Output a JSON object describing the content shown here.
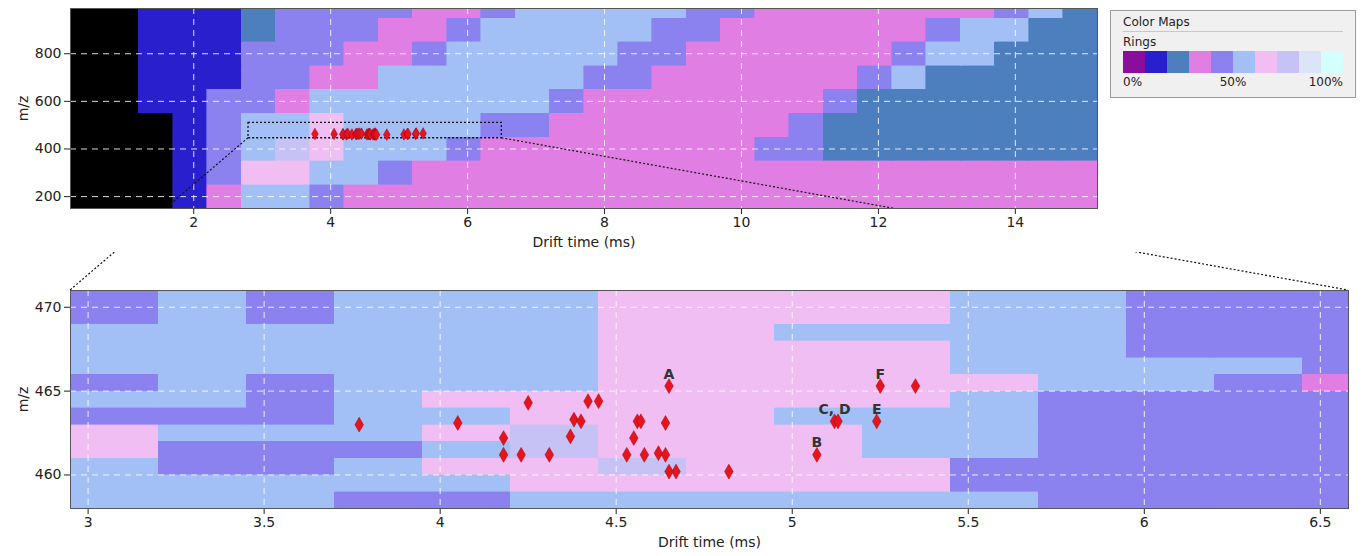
{
  "chart_data": [
    {
      "type": "heatmap",
      "x_label": "Drift time (ms)",
      "y_label": "m/z",
      "xlim": [
        0.2,
        15.2
      ],
      "ylim": [
        150,
        990
      ],
      "xticks": [
        2,
        4,
        6,
        8,
        10,
        12,
        14
      ],
      "yticks": [
        200,
        400,
        600,
        800
      ],
      "grid": true,
      "legend": "right",
      "colorbar": {
        "title": "Color Maps",
        "label": "Rings",
        "range": [
          0,
          100
        ],
        "ticks": [
          {
            "value": 0,
            "label": "0%"
          },
          {
            "value": 50,
            "label": "50%"
          },
          {
            "value": 100,
            "label": "100%"
          }
        ],
        "colors": [
          "#8b0d9e",
          "#2a1fcc",
          "#4d7fbf",
          "#e07ee4",
          "#8b82f0",
          "#a2c0f5",
          "#f0bef2",
          "#c6c2f5",
          "#dce4fa",
          "#d4ffff"
        ]
      },
      "zoom_box": {
        "x": [
          2.8,
          6.5
        ],
        "y": [
          445,
          510
        ]
      },
      "heatmap": {
        "x_edges": [
          0.2,
          0.7,
          1.2,
          1.7,
          2.2,
          2.7,
          3.2,
          3.7,
          4.2,
          4.7,
          5.2,
          5.7,
          6.2,
          6.7,
          7.2,
          7.7,
          8.2,
          8.7,
          9.2,
          9.7,
          10.2,
          10.7,
          11.2,
          11.7,
          12.2,
          12.7,
          13.2,
          13.7,
          14.2,
          14.7,
          15.2
        ],
        "y_edges": [
          150,
          250,
          350,
          450,
          550,
          650,
          750,
          850,
          950,
          990
        ],
        "values": [
          [
            null,
            null,
            null,
            15,
            35,
            55,
            55,
            45,
            35,
            35,
            35,
            35,
            35,
            35,
            35,
            35,
            35,
            35,
            35,
            35,
            35,
            35,
            35,
            35,
            35,
            35,
            35,
            35,
            35,
            35
          ],
          [
            null,
            null,
            null,
            15,
            45,
            65,
            65,
            55,
            55,
            45,
            35,
            35,
            35,
            35,
            35,
            35,
            35,
            35,
            35,
            35,
            35,
            35,
            35,
            35,
            35,
            35,
            35,
            35,
            35,
            35
          ],
          [
            null,
            null,
            null,
            15,
            45,
            55,
            75,
            65,
            55,
            55,
            55,
            45,
            35,
            35,
            35,
            35,
            35,
            35,
            35,
            35,
            45,
            45,
            25,
            25,
            25,
            25,
            25,
            25,
            25,
            25
          ],
          [
            null,
            null,
            null,
            15,
            45,
            55,
            55,
            65,
            55,
            55,
            55,
            55,
            45,
            45,
            35,
            35,
            35,
            35,
            35,
            35,
            35,
            45,
            25,
            25,
            25,
            25,
            25,
            25,
            25,
            25
          ],
          [
            null,
            null,
            15,
            15,
            45,
            45,
            35,
            55,
            55,
            55,
            55,
            55,
            55,
            55,
            45,
            35,
            35,
            35,
            35,
            35,
            35,
            35,
            45,
            25,
            25,
            25,
            25,
            25,
            25,
            25
          ],
          [
            null,
            null,
            15,
            15,
            15,
            45,
            45,
            35,
            35,
            55,
            55,
            55,
            55,
            55,
            55,
            45,
            45,
            35,
            35,
            35,
            35,
            35,
            35,
            45,
            55,
            25,
            25,
            25,
            25,
            25
          ],
          [
            null,
            null,
            15,
            15,
            15,
            45,
            45,
            45,
            35,
            35,
            45,
            55,
            55,
            55,
            55,
            55,
            45,
            45,
            35,
            35,
            35,
            35,
            35,
            35,
            45,
            55,
            55,
            25,
            25,
            25
          ],
          [
            null,
            null,
            15,
            15,
            15,
            25,
            45,
            45,
            45,
            35,
            35,
            45,
            55,
            55,
            55,
            55,
            55,
            45,
            45,
            35,
            35,
            35,
            35,
            35,
            35,
            45,
            55,
            55,
            25,
            25
          ],
          [
            null,
            null,
            15,
            15,
            15,
            25,
            45,
            45,
            45,
            45,
            35,
            35,
            45,
            55,
            55,
            55,
            55,
            55,
            45,
            45,
            35,
            35,
            35,
            35,
            35,
            35,
            35,
            45,
            55,
            25
          ]
        ]
      },
      "points": {
        "color": "#e8141c",
        "marker": "diamond",
        "x": [
          3.77,
          4.05,
          4.18,
          4.18,
          4.23,
          4.25,
          4.31,
          4.37,
          4.38,
          4.4,
          4.42,
          4.45,
          4.53,
          4.55,
          4.56,
          4.57,
          4.58,
          4.62,
          4.64,
          4.64,
          4.65,
          4.65,
          4.67,
          4.82,
          5.07,
          5.12,
          5.13,
          5.24,
          5.25,
          5.35
        ],
        "y": [
          463.0,
          463.1,
          462.2,
          461.2,
          461.2,
          464.3,
          461.2,
          462.3,
          463.3,
          463.2,
          464.4,
          464.4,
          461.2,
          462.2,
          463.2,
          463.2,
          461.2,
          461.3,
          461.2,
          463.1,
          465.3,
          460.2,
          460.2,
          460.2,
          461.2,
          463.2,
          463.2,
          463.2,
          465.3,
          465.3
        ]
      }
    },
    {
      "type": "heatmap",
      "x_label": "Drift time (ms)",
      "y_label": "m/z",
      "xlim": [
        2.95,
        6.58
      ],
      "ylim": [
        458,
        471
      ],
      "xticks": [
        3,
        3.5,
        4,
        4.5,
        5,
        5.5,
        6,
        6.5
      ],
      "yticks": [
        460,
        465,
        470
      ],
      "grid": true,
      "heatmap": {
        "x_edges": [
          2.95,
          3.2,
          3.45,
          3.7,
          3.95,
          4.2,
          4.45,
          4.7,
          4.95,
          5.2,
          5.45,
          5.7,
          5.95,
          6.2,
          6.45,
          6.58
        ],
        "y_edges": [
          458,
          459,
          460,
          461,
          462,
          463,
          464,
          465,
          466,
          467,
          468,
          469,
          470,
          471
        ],
        "values": [
          [
            55,
            55,
            55,
            45,
            45,
            55,
            55,
            55,
            55,
            55,
            55,
            45,
            45,
            45,
            45
          ],
          [
            55,
            55,
            55,
            55,
            55,
            65,
            65,
            65,
            65,
            65,
            45,
            45,
            45,
            45,
            45
          ],
          [
            55,
            45,
            45,
            55,
            65,
            65,
            75,
            65,
            65,
            65,
            45,
            45,
            45,
            45,
            45
          ],
          [
            65,
            45,
            45,
            45,
            55,
            75,
            65,
            65,
            65,
            55,
            55,
            45,
            45,
            45,
            45
          ],
          [
            65,
            55,
            55,
            55,
            65,
            75,
            65,
            65,
            65,
            55,
            55,
            45,
            45,
            45,
            45
          ],
          [
            45,
            45,
            45,
            55,
            55,
            65,
            65,
            65,
            55,
            55,
            55,
            45,
            45,
            45,
            45
          ],
          [
            55,
            55,
            45,
            55,
            65,
            65,
            65,
            65,
            65,
            65,
            55,
            45,
            45,
            45,
            45
          ],
          [
            45,
            55,
            45,
            55,
            55,
            55,
            65,
            65,
            65,
            65,
            65,
            55,
            55,
            45,
            35
          ],
          [
            55,
            55,
            55,
            55,
            55,
            55,
            65,
            65,
            65,
            65,
            55,
            55,
            55,
            55,
            45
          ],
          [
            55,
            55,
            55,
            55,
            55,
            55,
            65,
            65,
            65,
            65,
            55,
            55,
            45,
            45,
            45
          ],
          [
            55,
            55,
            55,
            55,
            55,
            55,
            65,
            65,
            55,
            55,
            55,
            55,
            45,
            45,
            45
          ],
          [
            45,
            55,
            45,
            55,
            55,
            55,
            65,
            65,
            65,
            65,
            55,
            55,
            45,
            45,
            45
          ],
          [
            45,
            55,
            45,
            55,
            55,
            55,
            65,
            65,
            65,
            65,
            55,
            55,
            45,
            45,
            45
          ]
        ]
      },
      "points": {
        "color": "#e8141c",
        "marker": "diamond",
        "x": [
          3.77,
          4.05,
          4.18,
          4.18,
          4.23,
          4.25,
          4.31,
          4.37,
          4.38,
          4.4,
          4.42,
          4.45,
          4.53,
          4.55,
          4.56,
          4.57,
          4.58,
          4.62,
          4.64,
          4.64,
          4.65,
          4.65,
          4.67,
          4.82,
          5.07,
          5.12,
          5.13,
          5.24,
          5.25,
          5.35
        ],
        "y": [
          463.0,
          463.1,
          462.2,
          461.2,
          461.2,
          464.3,
          461.2,
          462.3,
          463.3,
          463.2,
          464.4,
          464.4,
          461.2,
          462.2,
          463.2,
          463.2,
          461.2,
          461.3,
          461.2,
          463.1,
          465.3,
          460.2,
          460.2,
          460.2,
          461.2,
          463.2,
          463.2,
          463.2,
          465.3,
          465.3
        ],
        "labels": [
          null,
          null,
          null,
          null,
          null,
          null,
          null,
          null,
          null,
          null,
          null,
          null,
          null,
          null,
          null,
          null,
          null,
          null,
          null,
          null,
          "A",
          null,
          null,
          null,
          "B",
          "C, D",
          null,
          "E",
          "F",
          null
        ]
      }
    }
  ]
}
